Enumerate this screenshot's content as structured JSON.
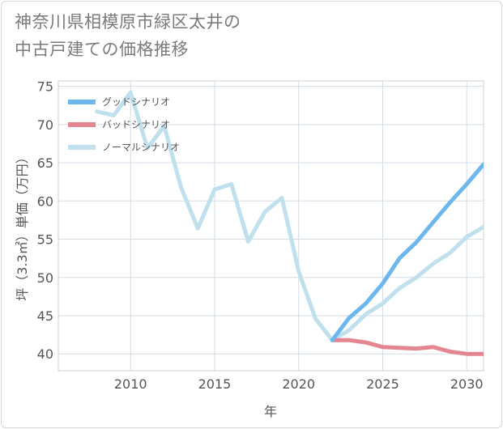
{
  "title_lines": [
    "神奈川県相模原市緑区太井の",
    "中古戸建ての価格推移"
  ],
  "chart_data": {
    "type": "line",
    "title": "神奈川県相模原市緑区太井の中古戸建ての価格推移",
    "xlabel": "年",
    "ylabel": "坪（3.3㎡）単価（万円）",
    "xlim": [
      2005.7,
      2031
    ],
    "ylim": [
      37.8,
      75.7
    ],
    "xticks": [
      2010,
      2015,
      2020,
      2025,
      2030
    ],
    "yticks": [
      40,
      45,
      50,
      55,
      60,
      65,
      70,
      75
    ],
    "grid": true,
    "legend_position": "top-left",
    "series": [
      {
        "name": "グッドシナリオ",
        "color": "#6cb8ee",
        "x": [
          2022,
          2023,
          2024,
          2025,
          2026,
          2027,
          2028,
          2029,
          2030,
          2031
        ],
        "values": [
          41.8,
          44.7,
          46.6,
          49.2,
          52.5,
          54.6,
          57.2,
          59.8,
          62.2,
          64.8
        ]
      },
      {
        "name": "バッドシナリオ",
        "color": "#e4868f",
        "x": [
          2022,
          2023,
          2024,
          2025,
          2026,
          2027,
          2028,
          2029,
          2030,
          2031
        ],
        "values": [
          41.8,
          41.8,
          41.5,
          40.9,
          40.8,
          40.7,
          40.9,
          40.3,
          40.0,
          40.0
        ]
      },
      {
        "name": "ノーマルシナリオ",
        "color": "#bfe0ec",
        "x": [
          2008,
          2009,
          2010,
          2011,
          2012,
          2013,
          2014,
          2015,
          2016,
          2017,
          2018,
          2019,
          2020,
          2021,
          2022,
          2023,
          2024,
          2025,
          2026,
          2027,
          2028,
          2029,
          2030,
          2031
        ],
        "values": [
          71.7,
          71.2,
          74.2,
          66.9,
          69.8,
          61.8,
          56.4,
          61.5,
          62.2,
          54.7,
          58.6,
          60.4,
          50.8,
          44.6,
          41.8,
          43.1,
          45.2,
          46.6,
          48.6,
          50.0,
          51.8,
          53.2,
          55.3,
          56.6
        ]
      }
    ]
  }
}
